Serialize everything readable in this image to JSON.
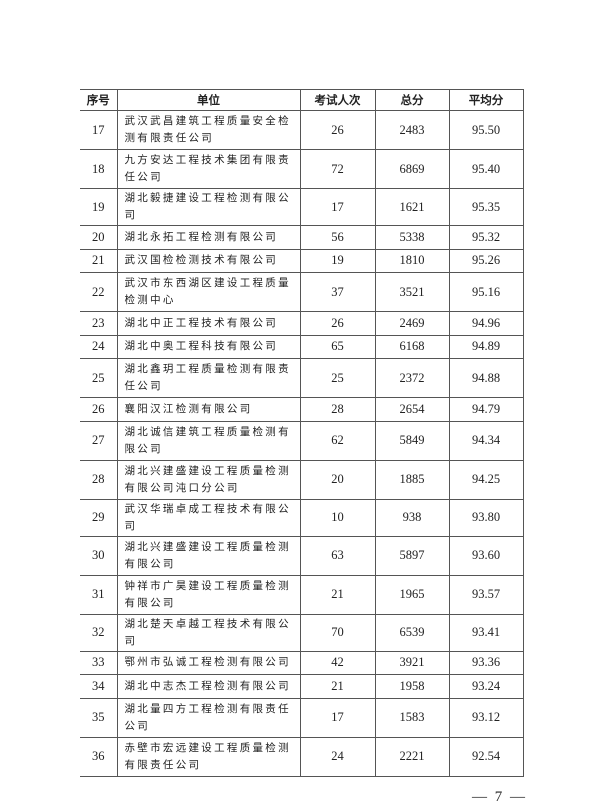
{
  "table": {
    "headers": [
      "序号",
      "单位",
      "考试人次",
      "总分",
      "平均分"
    ],
    "rows": [
      {
        "no": "17",
        "unit": "武汉武昌建筑工程质量安全检测有限责任公司",
        "count": "26",
        "total": "2483",
        "avg": "95.50"
      },
      {
        "no": "18",
        "unit": "九方安达工程技术集团有限责任公司",
        "count": "72",
        "total": "6869",
        "avg": "95.40"
      },
      {
        "no": "19",
        "unit": "湖北毅捷建设工程检测有限公司",
        "count": "17",
        "total": "1621",
        "avg": "95.35"
      },
      {
        "no": "20",
        "unit": "湖北永拓工程检测有限公司",
        "count": "56",
        "total": "5338",
        "avg": "95.32"
      },
      {
        "no": "21",
        "unit": "武汉国检检测技术有限公司",
        "count": "19",
        "total": "1810",
        "avg": "95.26"
      },
      {
        "no": "22",
        "unit": "武汉市东西湖区建设工程质量检测中心",
        "count": "37",
        "total": "3521",
        "avg": "95.16"
      },
      {
        "no": "23",
        "unit": "湖北中正工程技术有限公司",
        "count": "26",
        "total": "2469",
        "avg": "94.96"
      },
      {
        "no": "24",
        "unit": "湖北中奥工程科技有限公司",
        "count": "65",
        "total": "6168",
        "avg": "94.89"
      },
      {
        "no": "25",
        "unit": "湖北鑫玥工程质量检测有限责任公司",
        "count": "25",
        "total": "2372",
        "avg": "94.88"
      },
      {
        "no": "26",
        "unit": "襄阳汉江检测有限公司",
        "count": "28",
        "total": "2654",
        "avg": "94.79"
      },
      {
        "no": "27",
        "unit": "湖北诚信建筑工程质量检测有限公司",
        "count": "62",
        "total": "5849",
        "avg": "94.34"
      },
      {
        "no": "28",
        "unit": "湖北兴建盛建设工程质量检测有限公司沌口分公司",
        "count": "20",
        "total": "1885",
        "avg": "94.25"
      },
      {
        "no": "29",
        "unit": "武汉华瑞卓成工程技术有限公司",
        "count": "10",
        "total": "938",
        "avg": "93.80"
      },
      {
        "no": "30",
        "unit": "湖北兴建盛建设工程质量检测有限公司",
        "count": "63",
        "total": "5897",
        "avg": "93.60"
      },
      {
        "no": "31",
        "unit": "钟祥市广昊建设工程质量检测有限公司",
        "count": "21",
        "total": "1965",
        "avg": "93.57"
      },
      {
        "no": "32",
        "unit": "湖北楚天卓越工程技术有限公司",
        "count": "70",
        "total": "6539",
        "avg": "93.41"
      },
      {
        "no": "33",
        "unit": "鄂州市弘诚工程检测有限公司",
        "count": "42",
        "total": "3921",
        "avg": "93.36"
      },
      {
        "no": "34",
        "unit": "湖北中志杰工程检测有限公司",
        "count": "21",
        "total": "1958",
        "avg": "93.24"
      },
      {
        "no": "35",
        "unit": "湖北量四方工程检测有限责任公司",
        "count": "17",
        "total": "1583",
        "avg": "93.12"
      },
      {
        "no": "36",
        "unit": "赤壁市宏远建设工程质量检测有限责任公司",
        "count": "24",
        "total": "2221",
        "avg": "92.54"
      }
    ]
  },
  "page_number": "— 7 —"
}
